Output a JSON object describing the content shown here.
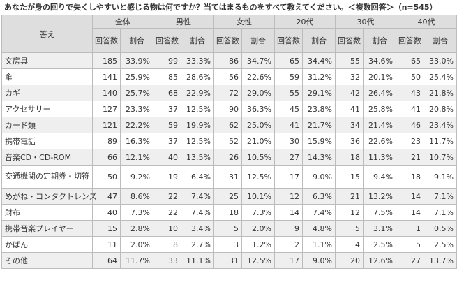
{
  "heading": "あなたが身の回りで失くしやすいと感じる物は何ですか？当てはまるものをすべて教えてください。＜複数回答＞（n=545）",
  "answer_header": "答え",
  "groups": [
    "全体",
    "男性",
    "女性",
    "20代",
    "30代",
    "40代"
  ],
  "sub_headers": {
    "count": "回答数",
    "ratio": "割合"
  },
  "rows": [
    {
      "item": "文房具",
      "v": [
        "185",
        "33.9%",
        "99",
        "33.3%",
        "86",
        "34.7%",
        "65",
        "34.4%",
        "55",
        "34.6%",
        "65",
        "33.0%"
      ]
    },
    {
      "item": "傘",
      "v": [
        "141",
        "25.9%",
        "85",
        "28.6%",
        "56",
        "22.6%",
        "59",
        "31.2%",
        "32",
        "20.1%",
        "50",
        "25.4%"
      ]
    },
    {
      "item": "カギ",
      "v": [
        "140",
        "25.7%",
        "68",
        "22.9%",
        "72",
        "29.0%",
        "55",
        "29.1%",
        "42",
        "26.4%",
        "43",
        "21.8%"
      ]
    },
    {
      "item": "アクセサリー",
      "v": [
        "127",
        "23.3%",
        "37",
        "12.5%",
        "90",
        "36.3%",
        "45",
        "23.8%",
        "41",
        "25.8%",
        "41",
        "20.8%"
      ]
    },
    {
      "item": "カード類",
      "v": [
        "121",
        "22.2%",
        "59",
        "19.9%",
        "62",
        "25.0%",
        "41",
        "21.7%",
        "34",
        "21.4%",
        "46",
        "23.4%"
      ]
    },
    {
      "item": "携帯電話",
      "v": [
        "89",
        "16.3%",
        "37",
        "12.5%",
        "52",
        "21.0%",
        "30",
        "15.9%",
        "36",
        "22.6%",
        "23",
        "11.7%"
      ]
    },
    {
      "item": "音楽CD・CD-ROM",
      "v": [
        "66",
        "12.1%",
        "40",
        "13.5%",
        "26",
        "10.5%",
        "27",
        "14.3%",
        "18",
        "11.3%",
        "21",
        "10.7%"
      ]
    },
    {
      "item": "交通機関の定期券・切符",
      "v": [
        "50",
        "9.2%",
        "19",
        "6.4%",
        "31",
        "12.5%",
        "17",
        "9.0%",
        "15",
        "9.4%",
        "18",
        "9.1%"
      ]
    },
    {
      "item": "めがね・コンタクトレンズ",
      "v": [
        "47",
        "8.6%",
        "22",
        "7.4%",
        "25",
        "10.1%",
        "12",
        "6.3%",
        "21",
        "13.2%",
        "14",
        "7.1%"
      ]
    },
    {
      "item": "財布",
      "v": [
        "40",
        "7.3%",
        "22",
        "7.4%",
        "18",
        "7.3%",
        "14",
        "7.4%",
        "12",
        "7.5%",
        "14",
        "7.1%"
      ]
    },
    {
      "item": "携帯音楽プレイヤー",
      "v": [
        "15",
        "2.8%",
        "10",
        "3.4%",
        "5",
        "2.0%",
        "9",
        "4.8%",
        "5",
        "3.1%",
        "1",
        "0.5%"
      ]
    },
    {
      "item": "かばん",
      "v": [
        "11",
        "2.0%",
        "8",
        "2.7%",
        "3",
        "1.2%",
        "2",
        "1.1%",
        "4",
        "2.5%",
        "5",
        "2.5%"
      ]
    },
    {
      "item": "その他",
      "v": [
        "64",
        "11.7%",
        "33",
        "11.1%",
        "31",
        "12.5%",
        "17",
        "9.0%",
        "20",
        "12.6%",
        "27",
        "13.7%"
      ]
    }
  ]
}
